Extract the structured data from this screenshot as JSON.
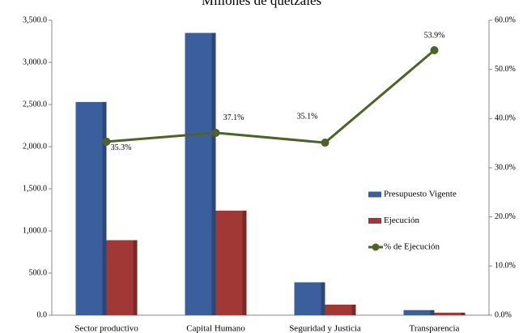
{
  "chart_data": {
    "type": "bar",
    "title": "Millones de quetzales",
    "categories": [
      "Sector productivo",
      "Capital Humano",
      "Seguridad y Justicia",
      "Transparencia"
    ],
    "series": [
      {
        "name": "Presupuesto Vigente",
        "color": "#3b5f9d",
        "values": [
          2530,
          3350,
          390,
          60
        ]
      },
      {
        "name": "Ejecución",
        "color": "#a13835",
        "values": [
          890,
          1240,
          125,
          30
        ]
      },
      {
        "name": "% de Ejecución",
        "type": "line",
        "axis": "y2",
        "color": "#4f6228",
        "values": [
          35.3,
          37.1,
          35.1,
          53.9
        ],
        "value_labels": [
          "35.3%",
          "37.1%",
          "35.1%",
          "53.9%"
        ]
      }
    ],
    "ylim": [
      0,
      3500
    ],
    "yticks": [
      {
        "value": 0,
        "label": "0.0"
      },
      {
        "value": 500,
        "label": "500.0"
      },
      {
        "value": 1000,
        "label": "1,000.0"
      },
      {
        "value": 1500,
        "label": "1,500.0"
      },
      {
        "value": 2000,
        "label": "2,000.0"
      },
      {
        "value": 2500,
        "label": "2,500.0"
      },
      {
        "value": 3000,
        "label": "3,000.0"
      },
      {
        "value": 3500,
        "label": "3,500.0"
      }
    ],
    "y2lim": [
      0,
      60
    ],
    "y2ticks": [
      {
        "value": 0,
        "label": "0.0%"
      },
      {
        "value": 10,
        "label": "10.0%"
      },
      {
        "value": 20,
        "label": "20.0%"
      },
      {
        "value": 30,
        "label": "30.0%"
      },
      {
        "value": 40,
        "label": "40.0%"
      },
      {
        "value": 50,
        "label": "50.0%"
      },
      {
        "value": 60,
        "label": "60.0%"
      }
    ],
    "legend": "right"
  }
}
